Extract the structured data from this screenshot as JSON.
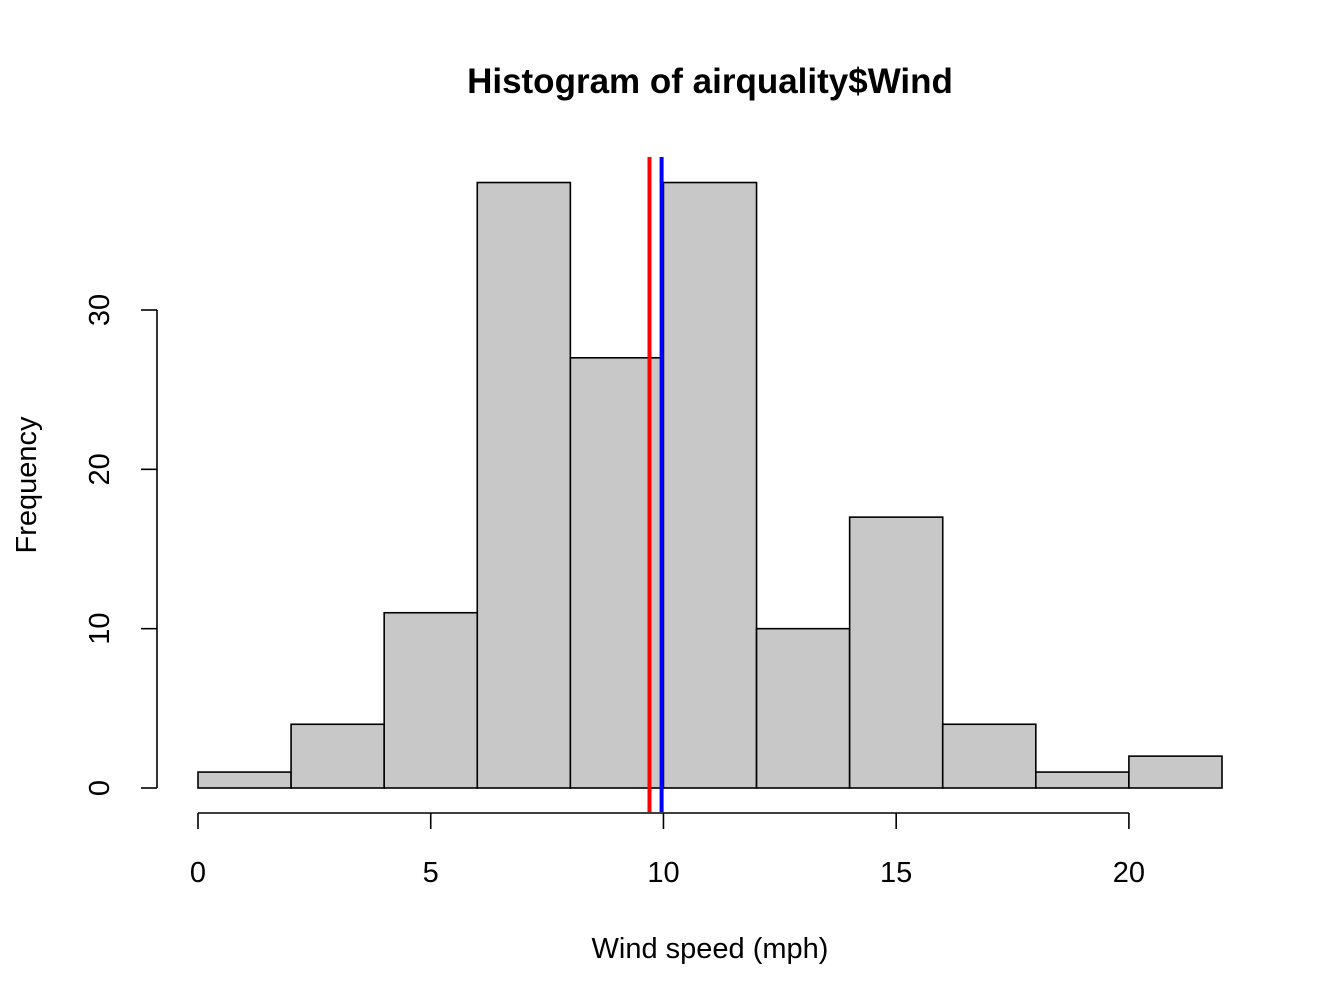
{
  "chart_data": {
    "type": "bar",
    "title": "Histogram of airquality$Wind",
    "xlabel": "Wind speed (mph)",
    "ylabel": "Frequency",
    "bins": [
      {
        "from": 0,
        "to": 2,
        "count": 1
      },
      {
        "from": 2,
        "to": 4,
        "count": 4
      },
      {
        "from": 4,
        "to": 6,
        "count": 11
      },
      {
        "from": 6,
        "to": 8,
        "count": 38
      },
      {
        "from": 8,
        "to": 10,
        "count": 27
      },
      {
        "from": 10,
        "to": 12,
        "count": 38
      },
      {
        "from": 12,
        "to": 14,
        "count": 10
      },
      {
        "from": 14,
        "to": 16,
        "count": 17
      },
      {
        "from": 16,
        "to": 18,
        "count": 4
      },
      {
        "from": 18,
        "to": 20,
        "count": 1
      },
      {
        "from": 20,
        "to": 22,
        "count": 2
      }
    ],
    "xlim": [
      0,
      22
    ],
    "ylim": [
      0,
      38
    ],
    "x_ticks": [
      0,
      5,
      10,
      15,
      20
    ],
    "x_tick_labels": [
      "0",
      "5",
      "10",
      "15",
      "20"
    ],
    "y_ticks": [
      0,
      10,
      20,
      30
    ],
    "y_tick_labels": [
      "0",
      "10",
      "20",
      "30"
    ],
    "reference_lines": [
      {
        "x": 9.7,
        "color": "#ff0000"
      },
      {
        "x": 9.96,
        "color": "#0000ff"
      }
    ],
    "bar_color": "#c8c8c8",
    "grid": false
  }
}
